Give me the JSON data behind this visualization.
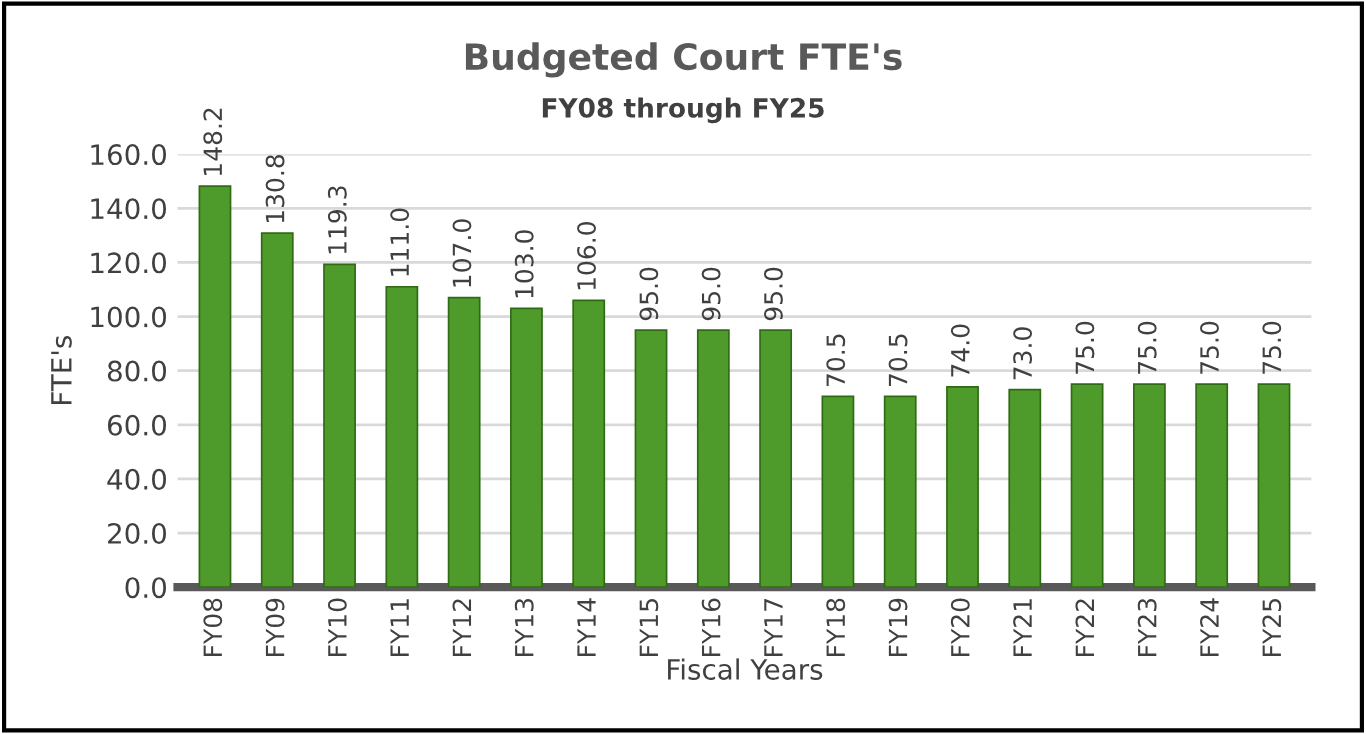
{
  "chart_data": {
    "type": "bar",
    "title": "Budgeted Court FTE's",
    "subtitle": "FY08 through FY25",
    "xlabel": "Fiscal Years",
    "ylabel": "FTE's",
    "categories": [
      "FY08",
      "FY09",
      "FY10",
      "FY11",
      "FY12",
      "FY13",
      "FY14",
      "FY15",
      "FY16",
      "FY17",
      "FY18",
      "FY19",
      "FY20",
      "FY21",
      "FY22",
      "FY23",
      "FY24",
      "FY25"
    ],
    "values": [
      148.2,
      130.8,
      119.3,
      111.0,
      107.0,
      103.0,
      106.0,
      95.0,
      95.0,
      95.0,
      70.5,
      70.5,
      74.0,
      73.0,
      75.0,
      75.0,
      75.0,
      75.0
    ],
    "color": "#4e9a2a",
    "ylim": [
      0,
      160
    ],
    "yticks": [
      {
        "value": 0,
        "label": "0.0"
      },
      {
        "value": 20,
        "label": "20.0"
      },
      {
        "value": 40,
        "label": "40.0"
      },
      {
        "value": 60,
        "label": "60.0"
      },
      {
        "value": 80,
        "label": "80.0"
      },
      {
        "value": 100,
        "label": "100.0"
      },
      {
        "value": 120,
        "label": "120.0"
      },
      {
        "value": 140,
        "label": "140.0"
      },
      {
        "value": 160,
        "label": "160.0"
      }
    ],
    "value_labels": [
      "148.2",
      "130.8",
      "119.3",
      "111.0",
      "107.0",
      "103.0",
      "106.0",
      "95.0",
      "95.0",
      "95.0",
      "70.5",
      "70.5",
      "74.0",
      "73.0",
      "75.0",
      "75.0",
      "75.0",
      "75.0"
    ],
    "grid": "y",
    "legend": false
  }
}
